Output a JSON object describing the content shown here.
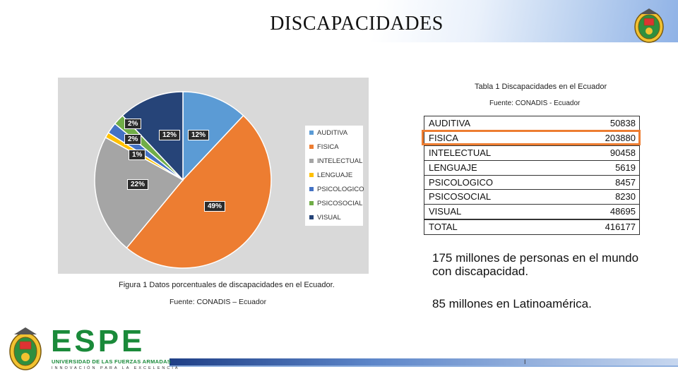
{
  "slide": {
    "title": "DISCAPACIDADES",
    "figure_caption": "Figura 1 Datos porcentuales de discapacidades en el Ecuador.",
    "figure_source": "Fuente: CONADIS – Ecuador",
    "table_title": "Tabla 1 Discapacidades en el Ecuador",
    "table_source": "Fuente: CONADIS - Ecuador",
    "text_world": "175 millones de personas en el mundo con discapacidad.",
    "text_latam": "85 millones en Latinoamérica.",
    "page_number": "I"
  },
  "table": {
    "rows": [
      {
        "name": "AUDITIVA",
        "value": "50838"
      },
      {
        "name": "FISICA",
        "value": "203880"
      },
      {
        "name": "INTELECTUAL",
        "value": "90458"
      },
      {
        "name": "LENGUAJE",
        "value": "5619"
      },
      {
        "name": "PSICOLOGICO",
        "value": "8457"
      },
      {
        "name": "PSICOSOCIAL",
        "value": "8230"
      },
      {
        "name": "VISUAL",
        "value": "48695"
      }
    ],
    "total": {
      "name": "TOTAL",
      "value": "416177"
    },
    "highlight_color": "#ed7d31"
  },
  "chart_data": {
    "type": "pie",
    "categories": [
      "AUDITIVA",
      "FISICA",
      "INTELECTUAL",
      "LENGUAJE",
      "PSICOLOGICO",
      "PSICOSOCIAL",
      "VISUAL"
    ],
    "values": [
      12,
      49,
      22,
      1,
      2,
      2,
      12
    ],
    "labels": [
      "12%",
      "49%",
      "22%",
      "1%",
      "2%",
      "2%",
      "12%"
    ],
    "colors": [
      "#5b9bd5",
      "#ed7d31",
      "#a5a5a5",
      "#ffc000",
      "#4472c4",
      "#70ad47",
      "#264478"
    ],
    "legend_position": "right"
  },
  "logo": {
    "name": "ESPE",
    "subtitle": "UNIVERSIDAD DE LAS FUERZAS ARMADAS",
    "tagline": "INNOVACIÓN PARA LA EXCELENCIA",
    "brand_color": "#1a8a3a"
  }
}
